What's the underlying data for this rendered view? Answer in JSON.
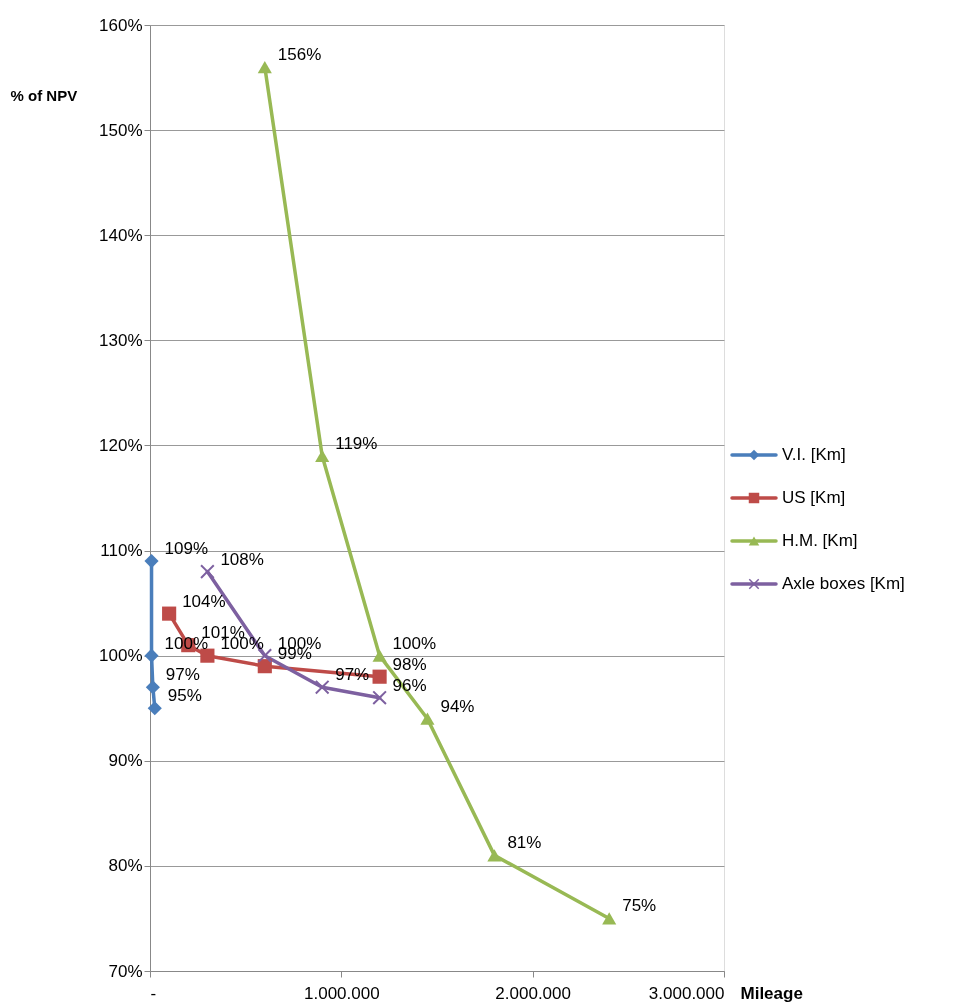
{
  "chart_data": {
    "type": "line",
    "xlabel": "Mileage",
    "ylabel": "% of NPV",
    "xlim": [
      0,
      3000000
    ],
    "xticks": [
      {
        "value": 0,
        "label": "-"
      },
      {
        "value": 1000000,
        "label": "1.000.000"
      },
      {
        "value": 2000000,
        "label": "2.000.000"
      },
      {
        "value": 3000000,
        "label": "3.000.000"
      }
    ],
    "ylim": [
      70,
      160
    ],
    "yticks": [
      {
        "value": 70,
        "label": "70%"
      },
      {
        "value": 80,
        "label": "80%"
      },
      {
        "value": 90,
        "label": "90%"
      },
      {
        "value": 100,
        "label": "100%"
      },
      {
        "value": 110,
        "label": "110%"
      },
      {
        "value": 120,
        "label": "120%"
      },
      {
        "value": 130,
        "label": "130%"
      },
      {
        "value": 140,
        "label": "140%"
      },
      {
        "value": 150,
        "label": "150%"
      },
      {
        "value": 160,
        "label": "160%"
      }
    ],
    "grid": "y",
    "legend": "right",
    "line_style": "solid",
    "series": [
      {
        "name": "V.I. [Km]",
        "color": "#4a7ebb",
        "marker": "diamond",
        "x": [
          8000,
          8000,
          15000,
          25000
        ],
        "values": [
          109,
          100,
          97,
          95
        ],
        "value_labels": [
          "109%",
          "100%",
          "97%",
          "95%"
        ]
      },
      {
        "name": "US [Km]",
        "color": "#be4b48",
        "marker": "square",
        "x": [
          100000,
          200000,
          300000,
          600000,
          1200000
        ],
        "values": [
          104,
          101,
          100,
          99,
          98
        ],
        "value_labels": [
          "104%",
          "101%",
          "100%",
          "99%",
          "98%"
        ]
      },
      {
        "name": "H.M. [Km]",
        "color": "#98b954",
        "marker": "triangle",
        "x": [
          600000,
          900000,
          1200000,
          1450000,
          1800000,
          2400000
        ],
        "values": [
          156,
          119,
          100,
          94,
          81,
          75
        ],
        "value_labels": [
          "156%",
          "119%",
          "100%",
          "94%",
          "81%",
          "75%"
        ]
      },
      {
        "name": "Axle boxes [Km]",
        "color": "#7d60a0",
        "marker": "cross",
        "x": [
          300000,
          600000,
          900000,
          1200000
        ],
        "values": [
          108,
          100,
          97,
          96
        ],
        "value_labels": [
          "108%",
          "100%",
          "97%",
          "96%"
        ]
      }
    ]
  }
}
